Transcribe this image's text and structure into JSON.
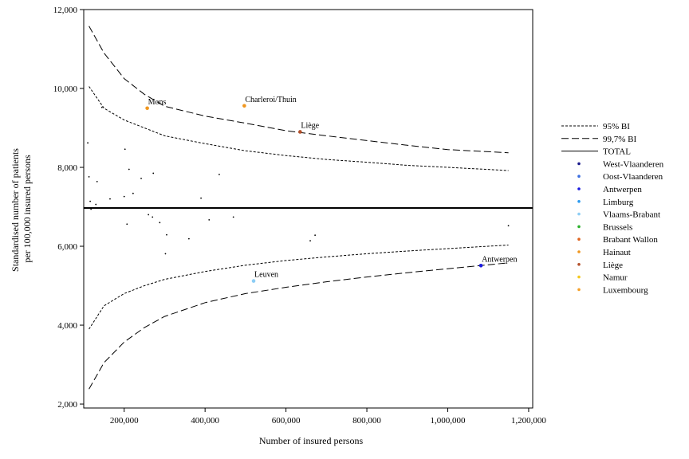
{
  "chart_data": {
    "type": "scatter",
    "subtype": "funnel plot",
    "xlabel": "Number of insured persons",
    "ylabel_lines": [
      "Standardised number of patients",
      "per 100,000 insured persons"
    ],
    "xlim": [
      100000,
      1210000
    ],
    "ylim": [
      1900,
      12000
    ],
    "x_ticks": [
      200000,
      400000,
      600000,
      800000,
      1000000,
      1200000
    ],
    "x_tick_labels": [
      "200,000",
      "400,000",
      "600,000",
      "800,000",
      "1,000,000",
      "1,200,000"
    ],
    "y_ticks": [
      2000,
      4000,
      6000,
      8000,
      10000,
      12000
    ],
    "y_tick_labels": [
      "2,000",
      "4,000",
      "6,000",
      "8,000",
      "10,000",
      "12,000"
    ],
    "total": 6970,
    "limit_curves": [
      {
        "name": "95% BI",
        "style": "dotted",
        "x": [
          113000,
          150000,
          200000,
          250000,
          300000,
          400000,
          500000,
          600000,
          700000,
          800000,
          900000,
          1000000,
          1150000
        ],
        "upper": [
          10050,
          9500,
          9200,
          9000,
          8800,
          8600,
          8420,
          8300,
          8200,
          8130,
          8050,
          8000,
          7920
        ],
        "lower": [
          3900,
          4490,
          4800,
          5000,
          5160,
          5360,
          5520,
          5640,
          5730,
          5810,
          5880,
          5940,
          6030
        ]
      },
      {
        "name": "99,7% BI",
        "style": "dashed",
        "x": [
          113000,
          150000,
          200000,
          250000,
          300000,
          400000,
          500000,
          600000,
          700000,
          800000,
          900000,
          1000000,
          1150000
        ],
        "upper": [
          11580,
          10900,
          10250,
          9850,
          9550,
          9300,
          9120,
          8930,
          8800,
          8680,
          8560,
          8450,
          8370
        ],
        "lower": [
          2380,
          3050,
          3570,
          3940,
          4220,
          4570,
          4800,
          4960,
          5100,
          5220,
          5330,
          5430,
          5580
        ]
      }
    ],
    "legend_position": "right",
    "legend": [
      {
        "label": "95% BI",
        "kind": "dotted"
      },
      {
        "label": "99,7% BI",
        "kind": "dashed"
      },
      {
        "label": "TOTAL",
        "kind": "solid"
      },
      {
        "label": "West-Vlaanderen",
        "kind": "dot",
        "color": "#1a1a8c"
      },
      {
        "label": "Oost-Vlaanderen",
        "kind": "dot",
        "color": "#3a6ee0"
      },
      {
        "label": "Antwerpen",
        "kind": "dot",
        "color": "#1a1ae0"
      },
      {
        "label": "Limburg",
        "kind": "dot",
        "color": "#2a9af0"
      },
      {
        "label": "Vlaams-Brabant",
        "kind": "dot",
        "color": "#8ccdf5"
      },
      {
        "label": "Brussels",
        "kind": "dot",
        "color": "#2ab02a"
      },
      {
        "label": "Brabant Wallon",
        "kind": "dot",
        "color": "#e0641e"
      },
      {
        "label": "Hainaut",
        "kind": "dot",
        "color": "#f0961e"
      },
      {
        "label": "Liège",
        "kind": "dot",
        "color": "#b4502a"
      },
      {
        "label": "Namur",
        "kind": "dot",
        "color": "#f5c81e"
      },
      {
        "label": "Luxembourg",
        "kind": "dot",
        "color": "#f5a028"
      }
    ],
    "highlighted_points": [
      {
        "label": "Mons",
        "x": 257000,
        "y": 9500,
        "color": "#f0961e"
      },
      {
        "label": "Charleroi/Thuin",
        "x": 497000,
        "y": 9560,
        "color": "#f0961e"
      },
      {
        "label": "Liège",
        "x": 635000,
        "y": 8900,
        "color": "#b4502a"
      },
      {
        "label": "Leuven",
        "x": 520000,
        "y": 5120,
        "color": "#8ccdf5"
      },
      {
        "label": "Antwerpen",
        "x": 1082000,
        "y": 5510,
        "color": "#1a1ae0"
      }
    ],
    "other_points": [
      [
        110000,
        8620
      ],
      [
        113000,
        7760
      ],
      [
        116000,
        7140
      ],
      [
        118000,
        6940
      ],
      [
        130000,
        7060
      ],
      [
        133000,
        7640
      ],
      [
        145000,
        9520
      ],
      [
        165000,
        7200
      ],
      [
        202000,
        8460
      ],
      [
        200000,
        7260
      ],
      [
        212000,
        7950
      ],
      [
        207000,
        6560
      ],
      [
        222000,
        7340
      ],
      [
        242000,
        7720
      ],
      [
        260000,
        6800
      ],
      [
        270000,
        6740
      ],
      [
        272000,
        7850
      ],
      [
        288000,
        6600
      ],
      [
        302000,
        5810
      ],
      [
        305000,
        6290
      ],
      [
        360000,
        6190
      ],
      [
        390000,
        7220
      ],
      [
        410000,
        6670
      ],
      [
        435000,
        7820
      ],
      [
        470000,
        6740
      ],
      [
        660000,
        6140
      ],
      [
        672000,
        6280
      ],
      [
        1150000,
        6520
      ]
    ]
  }
}
